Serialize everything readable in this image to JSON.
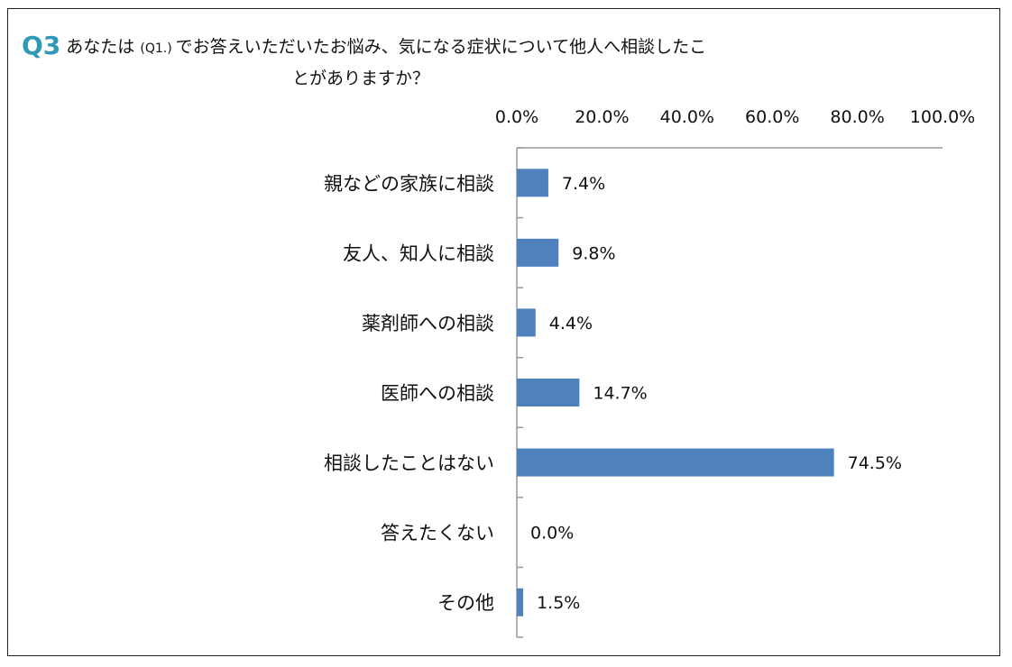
{
  "question": {
    "label": "Q3",
    "text_line1_a": "あなたは",
    "text_ref": "(Q1.)",
    "text_line1_b": "でお答えいただいたお悩み、気になる症状について他人へ相談したこ",
    "text_line2": "とがありますか？"
  },
  "chart_data": {
    "type": "bar",
    "orientation": "horizontal",
    "title": "",
    "xlabel": "",
    "ylabel": "",
    "xlim": [
      0,
      100
    ],
    "ticks": [
      "0.0%",
      "20.0%",
      "40.0%",
      "60.0%",
      "80.0%",
      "100.0%"
    ],
    "tick_values": [
      0,
      20,
      40,
      60,
      80,
      100
    ],
    "grid": false,
    "legend": "none",
    "bar_color": "#4f81bd",
    "categories": [
      "親などの家族に相談",
      "友人、知人に相談",
      "薬剤師への相談",
      "医師への相談",
      "相談したことはない",
      "答えたくない",
      "その他"
    ],
    "values": [
      7.4,
      9.8,
      4.4,
      14.7,
      74.5,
      0.0,
      1.5
    ],
    "value_labels": [
      "7.4%",
      "9.8%",
      "4.4%",
      "14.7%",
      "74.5%",
      "0.0%",
      "1.5%"
    ]
  }
}
